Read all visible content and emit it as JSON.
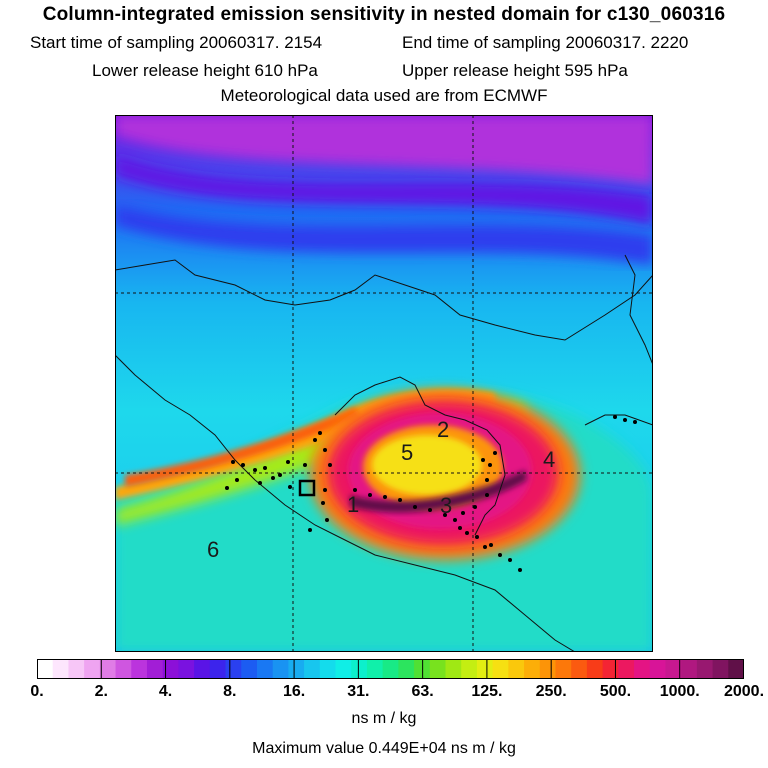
{
  "header": {
    "title": "Column-integrated emission sensitivity in nested domain for c130_060316",
    "start": "Start time of sampling 20060317.  2154",
    "end": "End time of sampling 20060317.  2220",
    "lower": "Lower release height  610 hPa",
    "upper": "Upper release height  595 hPa",
    "met": "Meteorological data used are from ECMWF"
  },
  "map": {
    "markers": [
      "1",
      "2",
      "3",
      "4",
      "5",
      "6"
    ]
  },
  "colorbar": {
    "ticks": [
      "0.",
      "2.",
      "4.",
      "8.",
      "16.",
      "31.",
      "63.",
      "125.",
      "250.",
      "500.",
      "1000.",
      "2000."
    ],
    "colors": [
      "#ffffff",
      "#fde6fd",
      "#f7c6f7",
      "#efa4f1",
      "#e07ce6",
      "#cf56e0",
      "#bb34dd",
      "#a21ed6",
      "#8c10d8",
      "#7a12e0",
      "#5a14e6",
      "#3c24ec",
      "#2a40f0",
      "#1c5cf2",
      "#1978f3",
      "#1993f2",
      "#18acf0",
      "#18c6ee",
      "#14dcec",
      "#10eee6",
      "#0cf0cc",
      "#10f0aa",
      "#18ea86",
      "#2ce45e",
      "#50e034",
      "#78e21e",
      "#a0e814",
      "#c4ee12",
      "#e2ee12",
      "#f6e012",
      "#fac80c",
      "#fcae08",
      "#fc9408",
      "#fc780a",
      "#fb5a10",
      "#f83c18",
      "#f42434",
      "#ec1860",
      "#e41484",
      "#d81498",
      "#c81890",
      "#b01880",
      "#981870",
      "#801460",
      "#601048"
    ],
    "units": "ns m / kg"
  },
  "footer": {
    "max_value": "Maximum value  0.449E+04 ns m / kg"
  }
}
